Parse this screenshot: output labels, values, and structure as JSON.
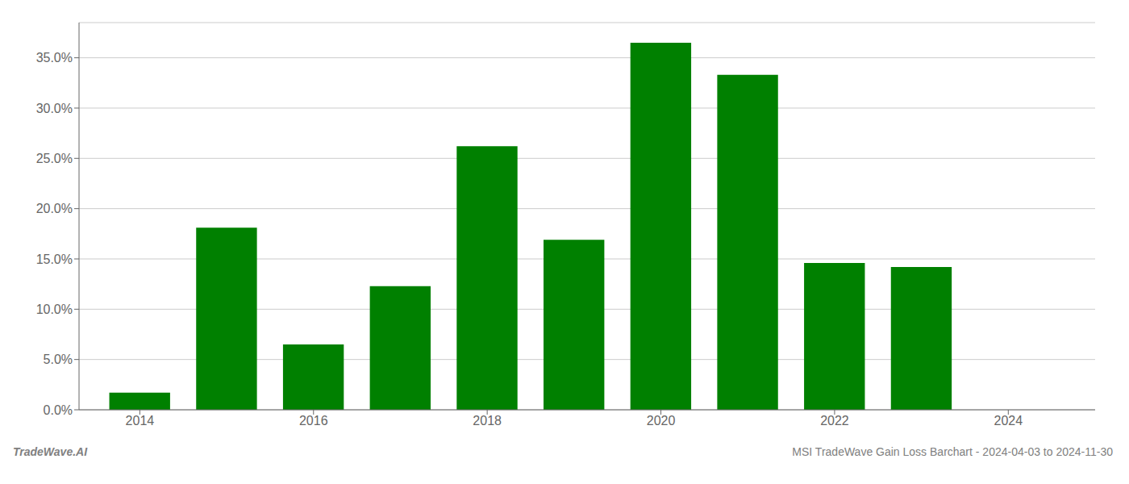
{
  "chart_data": {
    "type": "bar",
    "x": [
      2014,
      2015,
      2016,
      2017,
      2018,
      2019,
      2020,
      2021,
      2022,
      2023
    ],
    "values": [
      0.017,
      0.181,
      0.065,
      0.123,
      0.262,
      0.169,
      0.365,
      0.333,
      0.146,
      0.142
    ],
    "color": "#008000",
    "xlim": [
      2013.3,
      2025.0
    ],
    "xticks": [
      2014,
      2016,
      2018,
      2020,
      2022,
      2024
    ],
    "ylim": [
      0,
      0.385
    ],
    "yticks": [
      {
        "value": 0.0,
        "label": "0.0%"
      },
      {
        "value": 0.05,
        "label": "5.0%"
      },
      {
        "value": 0.1,
        "label": "10.0%"
      },
      {
        "value": 0.15,
        "label": "15.0%"
      },
      {
        "value": 0.2,
        "label": "20.0%"
      },
      {
        "value": 0.25,
        "label": "25.0%"
      },
      {
        "value": 0.3,
        "label": "30.0%"
      },
      {
        "value": 0.35,
        "label": "35.0%"
      }
    ],
    "grid": true,
    "annotations": [
      "TradeWave.AI",
      "MSI TradeWave Gain Loss Barchart - 2024-04-03 to 2024-11-30"
    ]
  }
}
